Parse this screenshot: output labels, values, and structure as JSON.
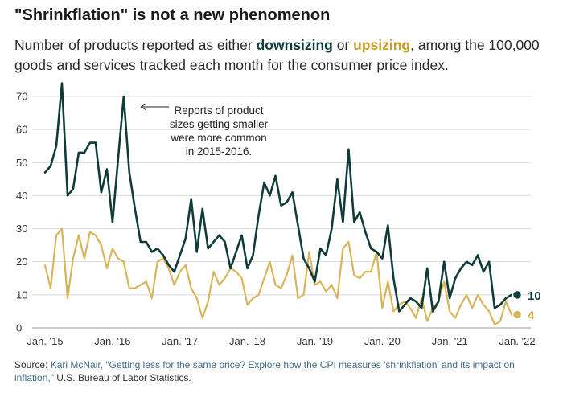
{
  "header": {
    "title": "\"Shrinkflation\" is not a new phenomenon",
    "subtitle_pre": "Number of products reported as either ",
    "subtitle_down": "downsizing",
    "subtitle_mid": " or ",
    "subtitle_up": "upsizing",
    "subtitle_post": ", among the 100,000 goods and services tracked each month for the consumer price index."
  },
  "source": {
    "label": "Source: ",
    "link_text": "Kari McNair, \"Getting less for the same price? Explore how the CPI measures 'shrinkflation' and its impact on inflation,\"",
    "tail": " U.S. Bureau of Labor Statistics."
  },
  "colors": {
    "downsizing": "#0f3b3b",
    "upsizing": "#d8b55a",
    "grid": "#d9d9d9"
  },
  "chart_data": {
    "type": "line",
    "title": "\"Shrinkflation\" is not a new phenomenon",
    "xlabel": "",
    "ylabel": "",
    "ylim": [
      0,
      75
    ],
    "yticks": [
      0,
      10,
      20,
      30,
      40,
      50,
      60,
      70
    ],
    "xlim": [
      0,
      84
    ],
    "xticks": [
      {
        "label": "Jan. '15",
        "index": 0
      },
      {
        "label": "Jan. '16",
        "index": 12
      },
      {
        "label": "Jan. '17",
        "index": 24
      },
      {
        "label": "Jan. '18",
        "index": 36
      },
      {
        "label": "Jan. '19",
        "index": 48
      },
      {
        "label": "Jan. '20",
        "index": 60
      },
      {
        "label": "Jan. '21",
        "index": 72
      },
      {
        "label": "Jan. '22",
        "index": 84
      }
    ],
    "grid": true,
    "series": [
      {
        "name": "downsizing",
        "end_label": "10",
        "values": [
          47,
          49,
          55,
          74,
          40,
          42,
          53,
          53,
          56,
          56,
          41,
          48,
          32,
          51,
          70,
          47,
          36,
          26,
          26,
          23,
          24,
          22,
          19,
          17,
          22,
          27,
          39,
          23,
          36,
          24,
          26,
          28,
          26,
          18,
          23,
          28,
          18,
          22,
          34,
          44,
          40,
          46,
          37,
          38,
          41,
          31,
          21,
          18,
          14,
          24,
          22,
          30,
          45,
          32,
          54,
          32,
          35,
          29,
          24,
          23,
          21,
          31,
          15,
          5,
          7,
          9,
          8,
          6,
          18,
          5,
          8,
          20,
          9,
          15,
          18,
          20,
          19,
          22,
          17,
          20,
          6,
          7,
          9,
          10,
          10
        ]
      },
      {
        "name": "upsizing",
        "end_label": "4",
        "values": [
          19,
          12,
          28,
          30,
          9,
          21,
          28,
          21,
          29,
          28,
          25,
          18,
          24,
          21,
          20,
          12,
          12,
          13,
          14,
          9,
          20,
          21,
          18,
          13,
          17,
          19,
          12,
          9,
          3,
          8,
          17,
          13,
          15,
          18,
          17,
          15,
          7,
          9,
          10,
          15,
          20,
          13,
          12,
          16,
          22,
          9,
          10,
          23,
          13,
          14,
          11,
          13,
          9,
          24,
          26,
          16,
          15,
          17,
          17,
          23,
          6,
          14,
          5,
          7,
          8,
          6,
          3,
          9,
          2,
          6,
          8,
          14,
          5,
          3,
          7,
          10,
          6,
          10,
          7,
          5,
          1,
          2,
          8,
          4,
          4
        ]
      }
    ],
    "annotation": [
      "Reports of product",
      "sizes getting smaller",
      "were more common",
      "in 2015-2016."
    ]
  }
}
